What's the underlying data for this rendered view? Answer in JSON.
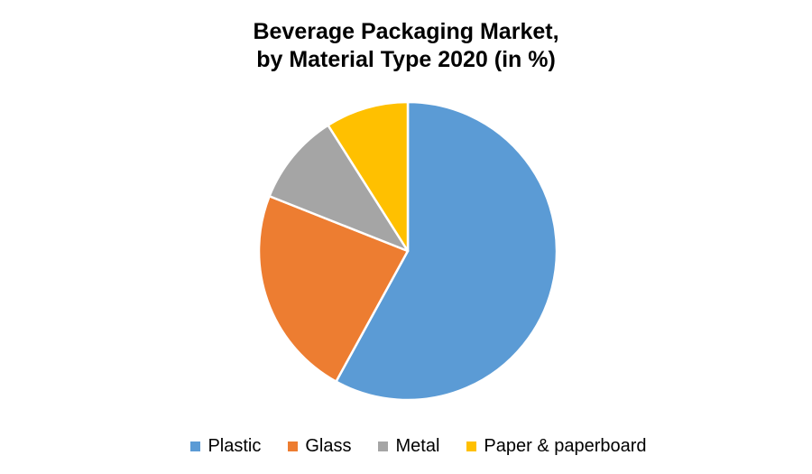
{
  "title": {
    "line1": "Beverage Packaging Market,",
    "line2": "by Material Type 2020 (in %)"
  },
  "chart_data": {
    "type": "pie",
    "title": "Beverage Packaging Market, by Material Type 2020 (in %)",
    "categories": [
      "Plastic",
      "Glass",
      "Metal",
      "Paper & paperboard"
    ],
    "values": [
      58,
      23,
      10,
      9
    ],
    "unit": "%",
    "colors": [
      "#5B9BD5",
      "#ED7D31",
      "#A5A5A5",
      "#FFC000"
    ],
    "start_angle_deg": 0,
    "direction": "clockwise",
    "legend_position": "bottom",
    "background": "#FFFFFF",
    "slice_border_color": "#FFFFFF"
  }
}
